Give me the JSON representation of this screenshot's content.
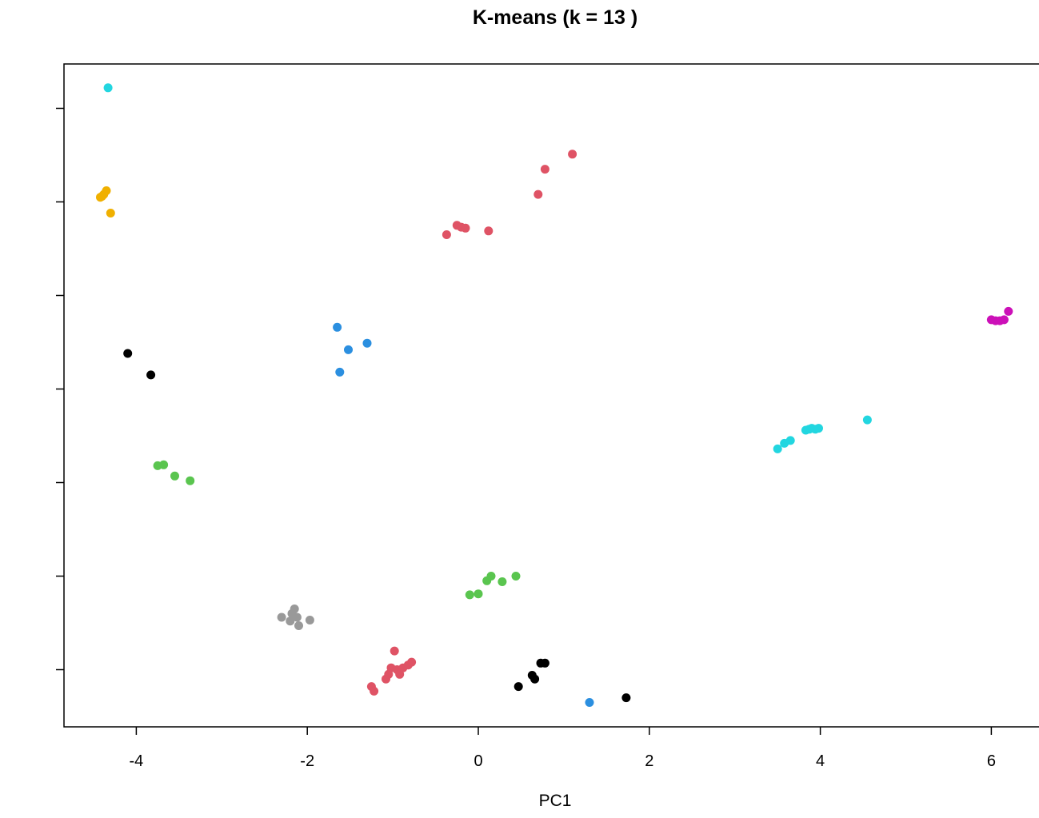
{
  "chart_data": {
    "type": "scatter",
    "title": "K-means (k = 13 )",
    "xlabel": "PC1",
    "ylabel": "",
    "xlim": [
      -4.45,
      6.85
    ],
    "ylim": [
      -3.55,
      3.55
    ],
    "x_ticks": [
      -4,
      -2,
      0,
      2,
      4,
      6
    ],
    "y_ticks": [
      -3,
      -2,
      -1,
      0,
      1,
      2,
      3
    ],
    "grid": false,
    "legend": "none",
    "point_color_note": "points colored by cluster",
    "points": [
      {
        "x": -4.33,
        "y": 3.22,
        "color": "#22d6e0"
      },
      {
        "x": -4.42,
        "y": 2.05,
        "color": "#f0b000"
      },
      {
        "x": -4.38,
        "y": 2.08,
        "color": "#f0b000"
      },
      {
        "x": -4.35,
        "y": 2.12,
        "color": "#f0b000"
      },
      {
        "x": -4.4,
        "y": 2.06,
        "color": "#f0b000"
      },
      {
        "x": -4.3,
        "y": 1.88,
        "color": "#f0b000"
      },
      {
        "x": -4.1,
        "y": 0.38,
        "color": "#000000"
      },
      {
        "x": -3.83,
        "y": 0.15,
        "color": "#000000"
      },
      {
        "x": -3.75,
        "y": -0.82,
        "color": "#5ac54f"
      },
      {
        "x": -3.68,
        "y": -0.81,
        "color": "#5ac54f"
      },
      {
        "x": -3.55,
        "y": -0.93,
        "color": "#5ac54f"
      },
      {
        "x": -3.37,
        "y": -0.98,
        "color": "#5ac54f"
      },
      {
        "x": -1.65,
        "y": 0.66,
        "color": "#2b8fe0"
      },
      {
        "x": -1.52,
        "y": 0.42,
        "color": "#2b8fe0"
      },
      {
        "x": -1.3,
        "y": 0.49,
        "color": "#2b8fe0"
      },
      {
        "x": -1.62,
        "y": 0.18,
        "color": "#2b8fe0"
      },
      {
        "x": -0.37,
        "y": 1.65,
        "color": "#df5365"
      },
      {
        "x": -0.25,
        "y": 1.75,
        "color": "#df5365"
      },
      {
        "x": -0.2,
        "y": 1.73,
        "color": "#df5365"
      },
      {
        "x": -0.15,
        "y": 1.72,
        "color": "#df5365"
      },
      {
        "x": 0.12,
        "y": 1.69,
        "color": "#df5365"
      },
      {
        "x": 0.7,
        "y": 2.08,
        "color": "#df5365"
      },
      {
        "x": 0.78,
        "y": 2.35,
        "color": "#df5365"
      },
      {
        "x": 1.1,
        "y": 2.51,
        "color": "#df5365"
      },
      {
        "x": 6.0,
        "y": 0.74,
        "color": "#cc10b8"
      },
      {
        "x": 6.05,
        "y": 0.73,
        "color": "#cc10b8"
      },
      {
        "x": 6.1,
        "y": 0.73,
        "color": "#cc10b8"
      },
      {
        "x": 6.15,
        "y": 0.74,
        "color": "#cc10b8"
      },
      {
        "x": 6.2,
        "y": 0.83,
        "color": "#cc10b8"
      },
      {
        "x": 3.5,
        "y": -0.64,
        "color": "#22d6e0"
      },
      {
        "x": 3.58,
        "y": -0.58,
        "color": "#22d6e0"
      },
      {
        "x": 3.65,
        "y": -0.55,
        "color": "#22d6e0"
      },
      {
        "x": 3.83,
        "y": -0.44,
        "color": "#22d6e0"
      },
      {
        "x": 3.87,
        "y": -0.43,
        "color": "#22d6e0"
      },
      {
        "x": 3.9,
        "y": -0.42,
        "color": "#22d6e0"
      },
      {
        "x": 3.94,
        "y": -0.43,
        "color": "#22d6e0"
      },
      {
        "x": 3.98,
        "y": -0.42,
        "color": "#22d6e0"
      },
      {
        "x": 4.55,
        "y": -0.33,
        "color": "#22d6e0"
      },
      {
        "x": -0.1,
        "y": -2.2,
        "color": "#5ac54f"
      },
      {
        "x": 0.0,
        "y": -2.19,
        "color": "#5ac54f"
      },
      {
        "x": 0.1,
        "y": -2.05,
        "color": "#5ac54f"
      },
      {
        "x": 0.15,
        "y": -2.0,
        "color": "#5ac54f"
      },
      {
        "x": 0.28,
        "y": -2.06,
        "color": "#5ac54f"
      },
      {
        "x": 0.44,
        "y": -2.0,
        "color": "#5ac54f"
      },
      {
        "x": -2.3,
        "y": -2.44,
        "color": "#999999"
      },
      {
        "x": -2.2,
        "y": -2.48,
        "color": "#999999"
      },
      {
        "x": -2.18,
        "y": -2.4,
        "color": "#999999"
      },
      {
        "x": -2.15,
        "y": -2.35,
        "color": "#999999"
      },
      {
        "x": -2.12,
        "y": -2.44,
        "color": "#999999"
      },
      {
        "x": -2.1,
        "y": -2.53,
        "color": "#999999"
      },
      {
        "x": -1.97,
        "y": -2.47,
        "color": "#999999"
      },
      {
        "x": -0.98,
        "y": -2.8,
        "color": "#df5365"
      },
      {
        "x": -1.25,
        "y": -3.18,
        "color": "#df5365"
      },
      {
        "x": -1.22,
        "y": -3.23,
        "color": "#df5365"
      },
      {
        "x": -1.08,
        "y": -3.1,
        "color": "#df5365"
      },
      {
        "x": -1.05,
        "y": -3.05,
        "color": "#df5365"
      },
      {
        "x": -1.02,
        "y": -2.98,
        "color": "#df5365"
      },
      {
        "x": -0.95,
        "y": -3.0,
        "color": "#df5365"
      },
      {
        "x": -0.92,
        "y": -3.05,
        "color": "#df5365"
      },
      {
        "x": -0.88,
        "y": -2.98,
        "color": "#df5365"
      },
      {
        "x": -0.82,
        "y": -2.95,
        "color": "#df5365"
      },
      {
        "x": -0.78,
        "y": -2.92,
        "color": "#df5365"
      },
      {
        "x": 0.47,
        "y": -3.18,
        "color": "#000000"
      },
      {
        "x": 0.63,
        "y": -3.06,
        "color": "#000000"
      },
      {
        "x": 0.66,
        "y": -3.1,
        "color": "#000000"
      },
      {
        "x": 0.73,
        "y": -2.93,
        "color": "#000000"
      },
      {
        "x": 0.78,
        "y": -2.93,
        "color": "#000000"
      },
      {
        "x": 1.3,
        "y": -3.35,
        "color": "#2b8fe0"
      },
      {
        "x": 1.73,
        "y": -3.3,
        "color": "#000000"
      }
    ]
  }
}
